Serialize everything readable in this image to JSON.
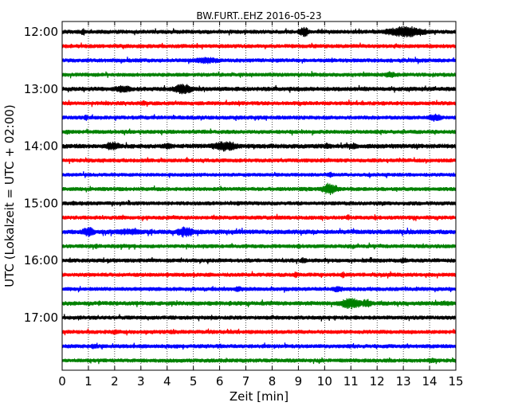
{
  "chart_data": {
    "type": "line",
    "title": "BW.FURT..EHZ 2016-05-23",
    "xlabel": "Zeit  [min]",
    "ylabel": "UTC (Lokalzeit = UTC + 02:00)",
    "xlim": [
      0,
      15
    ],
    "xticks": [
      "0",
      "1",
      "2",
      "3",
      "4",
      "5",
      "6",
      "7",
      "8",
      "9",
      "10",
      "11",
      "12",
      "13",
      "14",
      "15"
    ],
    "yticks": [
      {
        "label": "12:00",
        "row": 0
      },
      {
        "label": "13:00",
        "row": 4
      },
      {
        "label": "14:00",
        "row": 8
      },
      {
        "label": "15:00",
        "row": 12
      },
      {
        "label": "16:00",
        "row": 16
      },
      {
        "label": "17:00",
        "row": 20
      }
    ],
    "row_interval_min": 15,
    "grid": "vertical-dotted",
    "colors": [
      "#000000",
      "#ff0000",
      "#0000ff",
      "#008000"
    ],
    "traces": [
      {
        "start": "12:00",
        "amp": 0.35,
        "bursts": [
          [
            0.8,
            0.7,
            0.1
          ],
          [
            9.2,
            0.9,
            0.25
          ],
          [
            13.1,
            1.0,
            0.9
          ],
          [
            12.8,
            0.7,
            0.3
          ]
        ]
      },
      {
        "start": "12:15",
        "amp": 0.35,
        "bursts": []
      },
      {
        "start": "12:30",
        "amp": 0.35,
        "bursts": [
          [
            5.5,
            0.6,
            0.7
          ]
        ]
      },
      {
        "start": "12:45",
        "amp": 0.35,
        "bursts": [
          [
            12.5,
            0.6,
            0.3
          ]
        ]
      },
      {
        "start": "13:00",
        "amp": 0.38,
        "bursts": [
          [
            2.3,
            0.65,
            0.5
          ],
          [
            4.6,
            0.95,
            0.45
          ]
        ]
      },
      {
        "start": "13:15",
        "amp": 0.35,
        "bursts": [
          [
            3.1,
            0.5,
            0.2
          ]
        ]
      },
      {
        "start": "13:30",
        "amp": 0.35,
        "bursts": [
          [
            0.9,
            0.7,
            0.08
          ],
          [
            14.2,
            0.7,
            0.35
          ]
        ]
      },
      {
        "start": "13:45",
        "amp": 0.35,
        "bursts": [
          [
            0.2,
            0.5,
            0.2
          ]
        ]
      },
      {
        "start": "14:00",
        "amp": 0.4,
        "bursts": [
          [
            1.9,
            0.8,
            0.4
          ],
          [
            4.0,
            0.6,
            0.3
          ],
          [
            6.2,
            0.95,
            0.6
          ],
          [
            10.1,
            0.6,
            0.2
          ],
          [
            11.1,
            0.6,
            0.2
          ]
        ]
      },
      {
        "start": "14:15",
        "amp": 0.35,
        "bursts": []
      },
      {
        "start": "14:30",
        "amp": 0.32,
        "bursts": [
          [
            10.2,
            0.55,
            0.15
          ]
        ]
      },
      {
        "start": "14:45",
        "amp": 0.35,
        "bursts": [
          [
            10.2,
            1.1,
            0.35
          ]
        ]
      },
      {
        "start": "15:00",
        "amp": 0.35,
        "bursts": [
          [
            0.4,
            0.5,
            0.1
          ],
          [
            6.7,
            0.5,
            0.1
          ]
        ]
      },
      {
        "start": "15:15",
        "amp": 0.35,
        "bursts": [
          [
            10.9,
            0.6,
            0.1
          ]
        ]
      },
      {
        "start": "15:30",
        "amp": 0.4,
        "bursts": [
          [
            1.0,
            0.9,
            0.3
          ],
          [
            2.5,
            0.6,
            0.8
          ],
          [
            3.4,
            0.8,
            0.05
          ],
          [
            4.7,
            1.0,
            0.4
          ]
        ]
      },
      {
        "start": "15:45",
        "amp": 0.35,
        "bursts": [
          [
            1.3,
            0.5,
            0.1
          ],
          [
            9.0,
            0.5,
            0.1
          ]
        ]
      },
      {
        "start": "16:00",
        "amp": 0.35,
        "bursts": [
          [
            9.2,
            0.6,
            0.15
          ],
          [
            13.0,
            0.55,
            0.2
          ]
        ]
      },
      {
        "start": "16:15",
        "amp": 0.35,
        "bursts": [
          [
            8.9,
            0.7,
            0.1
          ],
          [
            10.7,
            0.6,
            0.1
          ],
          [
            4.0,
            0.5,
            0.1
          ]
        ]
      },
      {
        "start": "16:30",
        "amp": 0.35,
        "bursts": [
          [
            6.7,
            0.6,
            0.2
          ],
          [
            10.5,
            0.6,
            0.3
          ]
        ]
      },
      {
        "start": "16:45",
        "amp": 0.38,
        "bursts": [
          [
            1.4,
            0.5,
            0.05
          ],
          [
            6.4,
            0.5,
            0.1
          ],
          [
            11.0,
            1.0,
            0.5
          ],
          [
            11.6,
            0.8,
            0.25
          ],
          [
            14.6,
            0.5,
            0.5
          ]
        ]
      },
      {
        "start": "17:00",
        "amp": 0.35,
        "bursts": []
      },
      {
        "start": "17:15",
        "amp": 0.35,
        "bursts": [
          [
            2.0,
            0.5,
            0.2
          ],
          [
            4.2,
            0.45,
            0.2
          ]
        ]
      },
      {
        "start": "17:30",
        "amp": 0.35,
        "bursts": [
          [
            1.2,
            0.5,
            0.2
          ],
          [
            6.0,
            0.45,
            0.2
          ]
        ]
      },
      {
        "start": "17:45",
        "amp": 0.35,
        "bursts": [
          [
            14.1,
            0.5,
            0.3
          ]
        ]
      }
    ]
  }
}
